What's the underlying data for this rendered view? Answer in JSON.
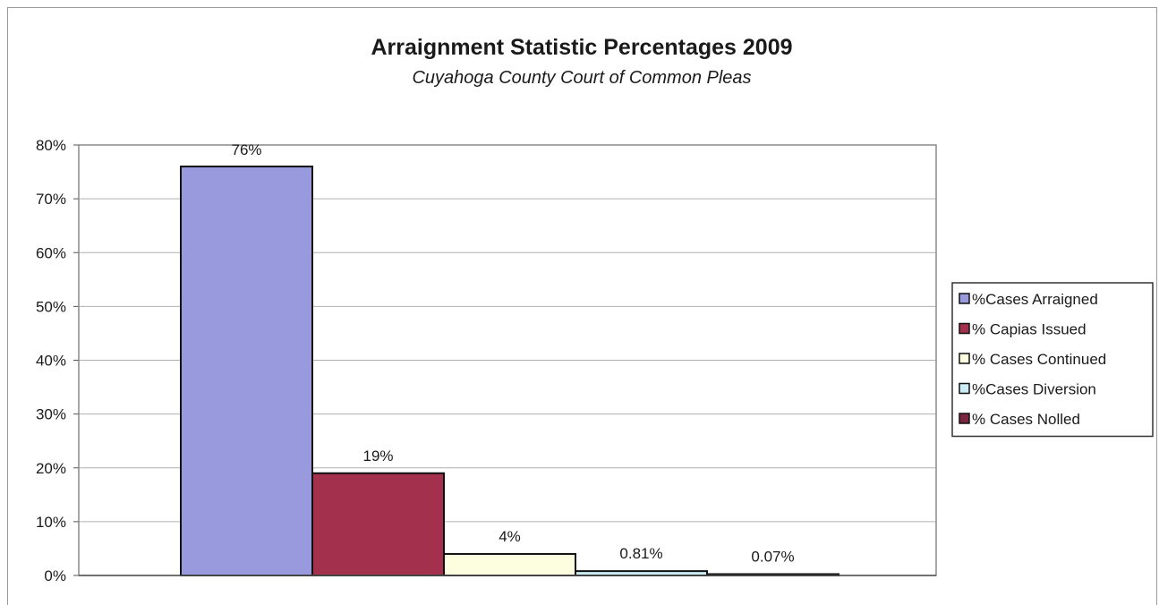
{
  "chart_data": {
    "type": "bar",
    "title": "Arraignment Statistic Percentages 2009",
    "subtitle": "Cuyahoga County Court of Common Pleas",
    "xlabel": "",
    "ylabel": "",
    "ylim": [
      0,
      80
    ],
    "y_ticks": [
      "0%",
      "10%",
      "20%",
      "30%",
      "40%",
      "50%",
      "60%",
      "70%",
      "80%"
    ],
    "grid": true,
    "legend_position": "right",
    "series": [
      {
        "name": "%Cases Arraigned",
        "value": 76,
        "label": "76%",
        "color": "#9999dd"
      },
      {
        "name": "% Capias Issued",
        "value": 19,
        "label": "19%",
        "color": "#a3304c"
      },
      {
        "name": "% Cases Continued",
        "value": 4,
        "label": "4%",
        "color": "#fdfde0"
      },
      {
        "name": "%Cases Diversion",
        "value": 0.81,
        "label": "0.81%",
        "color": "#ccecf5"
      },
      {
        "name": "% Cases Nolled",
        "value": 0.07,
        "label": "0.07%",
        "color": "#7a2640"
      }
    ]
  }
}
